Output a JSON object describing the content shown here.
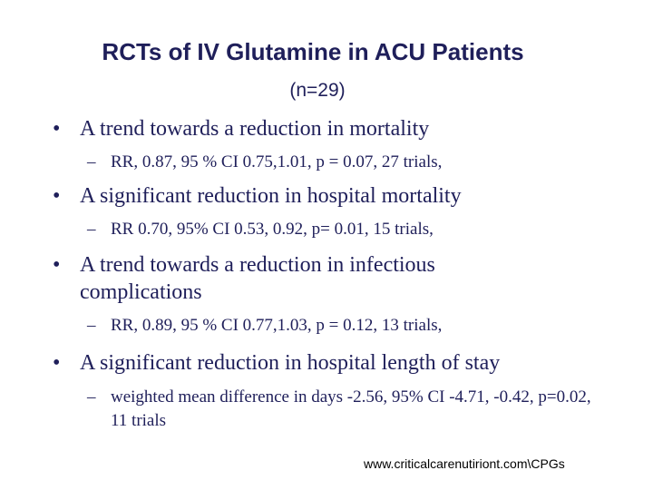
{
  "slide": {
    "title": "RCTs of IV Glutamine in ACU Patients",
    "subtitle": "(n=29)",
    "bullet_symbol": "•",
    "dash_symbol": "–",
    "items": [
      {
        "text": "A trend towards a reduction in mortality",
        "sub": "RR, 0.87, 95 % CI 0.75,1.01, p = 0.07, 27 trials,"
      },
      {
        "text": "A significant reduction in hospital mortality",
        "sub": "RR 0.70, 95% CI 0.53, 0.92, p= 0.01, 15 trials,"
      },
      {
        "text": "A trend towards a reduction in infectious complications",
        "sub": "RR, 0.89, 95 % CI 0.77,1.03, p = 0.12, 13 trials,"
      },
      {
        "text": "A significant reduction in hospital length of stay",
        "sub": "weighted mean difference in days -2.56, 95% CI -4.71, -0.42, p=0.02, 11 trials"
      }
    ],
    "footer": "www.criticalcarenutiriont.com\\CPGs"
  }
}
